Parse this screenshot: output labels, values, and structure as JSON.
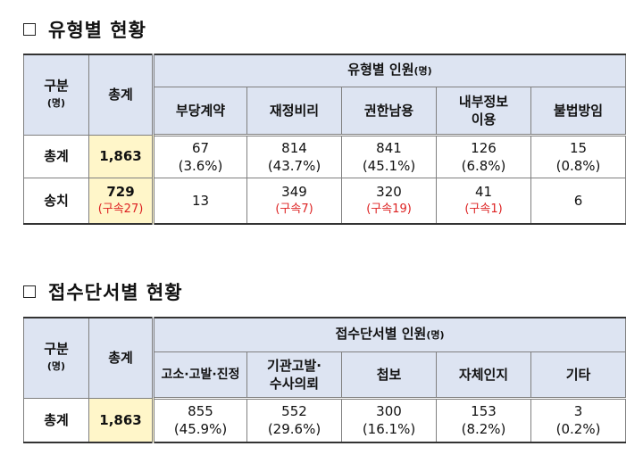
{
  "section1": {
    "title": "유형별 현황",
    "col_gubun": "구분",
    "col_gubun_unit": "(명)",
    "col_total": "총계",
    "group_header": "유형별 인원",
    "group_header_unit": "(명)",
    "categories": [
      "부당계약",
      "재정비리",
      "권한남용",
      "내부정보\n이용",
      "불법방임"
    ],
    "rows": [
      {
        "label": "총계",
        "total": "1,863",
        "total_sub": "",
        "cells": [
          {
            "value": "67",
            "sub": "(3.6%)"
          },
          {
            "value": "814",
            "sub": "(43.7%)"
          },
          {
            "value": "841",
            "sub": "(45.1%)"
          },
          {
            "value": "126",
            "sub": "(6.8%)"
          },
          {
            "value": "15",
            "sub": "(0.8%)"
          }
        ]
      },
      {
        "label": "송치",
        "total": "729",
        "total_sub": "(구속27)",
        "cells": [
          {
            "value": "13",
            "sub": ""
          },
          {
            "value": "349",
            "sub": "(구속7)"
          },
          {
            "value": "320",
            "sub": "(구속19)"
          },
          {
            "value": "41",
            "sub": "(구속1)"
          },
          {
            "value": "6",
            "sub": ""
          }
        ]
      }
    ]
  },
  "section2": {
    "title": "접수단서별 현황",
    "col_gubun": "구분",
    "col_gubun_unit": "(명)",
    "col_total": "총계",
    "group_header": "접수단서별 인원",
    "group_header_unit": "(명)",
    "categories": [
      "고소·고발·진정",
      "기관고발·\n수사의뢰",
      "첩보",
      "자체인지",
      "기타"
    ],
    "rows": [
      {
        "label": "총계",
        "total": "1,863",
        "cells": [
          {
            "value": "855",
            "sub": "(45.9%)"
          },
          {
            "value": "552",
            "sub": "(29.6%)"
          },
          {
            "value": "300",
            "sub": "(16.1%)"
          },
          {
            "value": "153",
            "sub": "(8.2%)"
          },
          {
            "value": "3",
            "sub": "(0.2%)"
          }
        ]
      }
    ]
  }
}
